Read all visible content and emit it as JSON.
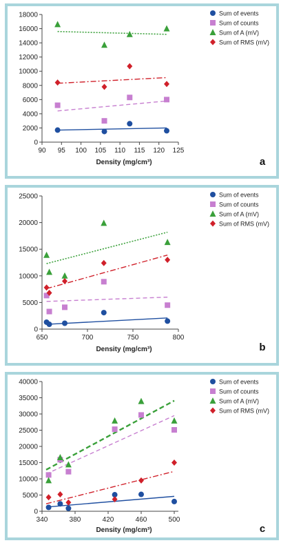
{
  "chart_data": [
    {
      "type": "scatter",
      "panel_label": "a",
      "xlabel": "Density (mg/cm³)",
      "ylabel": "",
      "xlim": [
        90,
        125
      ],
      "ylim": [
        0,
        18000
      ],
      "xticks": [
        90,
        95,
        100,
        105,
        110,
        115,
        120,
        125
      ],
      "yticks": [
        0,
        2000,
        4000,
        6000,
        8000,
        10000,
        12000,
        14000,
        16000,
        18000
      ],
      "legend_position": "top-right",
      "series": [
        {
          "name": "Sum of events",
          "marker": "circle",
          "color": "#1f4fa0",
          "x": [
            94,
            106,
            112.5,
            122
          ],
          "y": [
            1700,
            1500,
            2600,
            1600
          ],
          "trend": [
            [
              94,
              1700
            ],
            [
              122,
              2000
            ]
          ],
          "trend_style": "solid"
        },
        {
          "name": "Sum of counts",
          "marker": "square",
          "color": "#c77fd0",
          "x": [
            94,
            106,
            112.5,
            122
          ],
          "y": [
            5200,
            3000,
            6300,
            6000
          ],
          "trend": [
            [
              94,
              4400
            ],
            [
              122,
              5800
            ]
          ],
          "trend_style": "dashed"
        },
        {
          "name": "Sum of A  (mV)",
          "marker": "triangle",
          "color": "#3aa03a",
          "x": [
            94,
            106,
            112.5,
            122
          ],
          "y": [
            16600,
            13700,
            15200,
            16000
          ],
          "trend": [
            [
              94,
              15600
            ],
            [
              122,
              15200
            ]
          ],
          "trend_style": "dotted"
        },
        {
          "name": "Sum of RMS  (mV)",
          "marker": "diamond",
          "color": "#d0202a",
          "x": [
            94,
            106,
            112.5,
            122
          ],
          "y": [
            8400,
            7800,
            10700,
            8200
          ],
          "trend": [
            [
              94,
              8300
            ],
            [
              122,
              9100
            ]
          ],
          "trend_style": "dashdot"
        }
      ]
    },
    {
      "type": "scatter",
      "panel_label": "b",
      "xlabel": "Density (mg/cm³)",
      "ylabel": "",
      "xlim": [
        650,
        800
      ],
      "ylim": [
        0,
        25000
      ],
      "xticks": [
        650,
        700,
        750,
        800
      ],
      "yticks": [
        0,
        5000,
        10000,
        15000,
        20000,
        25000
      ],
      "legend_position": "top-right",
      "series": [
        {
          "name": "Sum of events",
          "marker": "circle",
          "color": "#1f4fa0",
          "x": [
            655,
            658,
            675,
            718,
            788
          ],
          "y": [
            1300,
            900,
            1100,
            3100,
            1500
          ],
          "trend": [
            [
              655,
              900
            ],
            [
              788,
              2100
            ]
          ],
          "trend_style": "solid"
        },
        {
          "name": "Sum of counts",
          "marker": "square",
          "color": "#c77fd0",
          "x": [
            655,
            658,
            675,
            718,
            788
          ],
          "y": [
            6300,
            3300,
            4100,
            8900,
            4500
          ],
          "trend": [
            [
              655,
              5200
            ],
            [
              788,
              6000
            ]
          ],
          "trend_style": "dashed"
        },
        {
          "name": "Sum of A  (mV)",
          "marker": "triangle",
          "color": "#3aa03a",
          "x": [
            655,
            658,
            675,
            718,
            788
          ],
          "y": [
            13900,
            10700,
            10000,
            19900,
            16300
          ],
          "trend": [
            [
              655,
              12300
            ],
            [
              788,
              18200
            ]
          ],
          "trend_style": "dotted"
        },
        {
          "name": "Sum of RMS  (mV)",
          "marker": "diamond",
          "color": "#d0202a",
          "x": [
            655,
            658,
            675,
            718,
            788
          ],
          "y": [
            7800,
            6800,
            9000,
            12400,
            13000
          ],
          "trend": [
            [
              655,
              7600
            ],
            [
              788,
              13900
            ]
          ],
          "trend_style": "dashdot"
        }
      ]
    },
    {
      "type": "scatter",
      "panel_label": "c",
      "xlabel": "Density (mg/cm³)",
      "ylabel": "",
      "xlim": [
        340,
        505
      ],
      "ylim": [
        0,
        40000
      ],
      "xticks": [
        340,
        380,
        420,
        460,
        500
      ],
      "yticks": [
        0,
        5000,
        10000,
        15000,
        20000,
        25000,
        30000,
        35000,
        40000
      ],
      "legend_position": "top-right",
      "series": [
        {
          "name": "Sum of events",
          "marker": "circle",
          "color": "#1f4fa0",
          "x": [
            348,
            362,
            372,
            428,
            460,
            500
          ],
          "y": [
            1200,
            2300,
            900,
            5100,
            5200,
            3000
          ],
          "trend": [
            [
              345,
              1300
            ],
            [
              500,
              4600
            ]
          ],
          "trend_style": "solid"
        },
        {
          "name": "Sum of counts",
          "marker": "square",
          "color": "#c77fd0",
          "x": [
            348,
            362,
            372,
            428,
            460,
            500
          ],
          "y": [
            11200,
            15900,
            12200,
            25300,
            29700,
            25100
          ],
          "trend": [
            [
              345,
              11500
            ],
            [
              500,
              29500
            ]
          ],
          "trend_style": "dashed"
        },
        {
          "name": "Sum of A  (mV)",
          "marker": "triangle",
          "color": "#3aa03a",
          "x": [
            348,
            362,
            372,
            428,
            460,
            500
          ],
          "y": [
            9500,
            16600,
            14400,
            27900,
            33900,
            27900
          ],
          "trend": [
            [
              345,
              12800
            ],
            [
              500,
              34100
            ]
          ],
          "trend_style": "dashed-bold"
        },
        {
          "name": "Sum of RMS  (mV)",
          "marker": "diamond",
          "color": "#d0202a",
          "x": [
            348,
            362,
            372,
            428,
            460,
            500
          ],
          "y": [
            4300,
            5200,
            2700,
            3700,
            9500,
            15000
          ],
          "trend": [
            [
              345,
              2300
            ],
            [
              500,
              12300
            ]
          ],
          "trend_style": "dashdot"
        }
      ]
    }
  ]
}
